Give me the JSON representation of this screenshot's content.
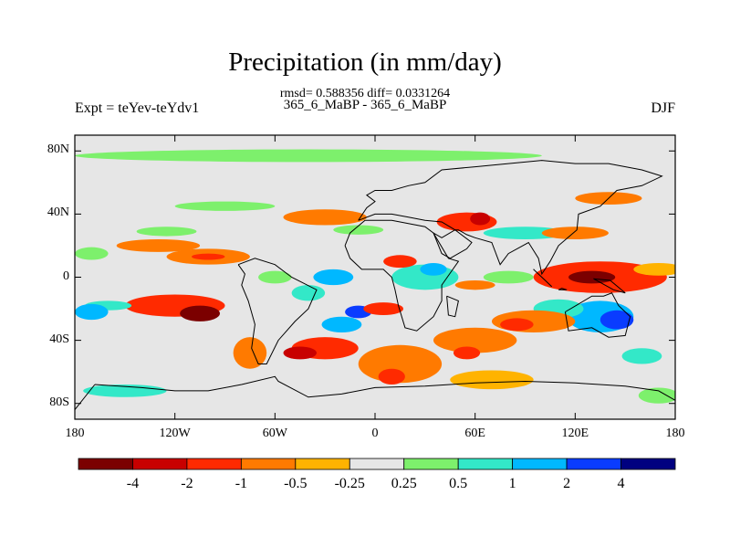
{
  "header": {
    "title": "Precipitation (in mm/day)",
    "stats": "rmsd= 0.588356 diff= 0.0331264",
    "runs": "365_6_MaBP - 365_6_MaBP",
    "left_string": "Expt = teYev-teYdv1",
    "right_string": "DJF"
  },
  "map": {
    "type": "contour-map",
    "lon_range": [
      -180,
      180
    ],
    "lat_range": [
      -90,
      90
    ],
    "y_ticks": [
      {
        "lat": 80,
        "label": "80N"
      },
      {
        "lat": 40,
        "label": "40N"
      },
      {
        "lat": 0,
        "label": "0"
      },
      {
        "lat": -40,
        "label": "40S"
      },
      {
        "lat": -80,
        "label": "80S"
      }
    ],
    "x_ticks": [
      {
        "lon": -180,
        "label": "180"
      },
      {
        "lon": -120,
        "label": "120W"
      },
      {
        "lon": -60,
        "label": "60W"
      },
      {
        "lon": 0,
        "label": "0"
      },
      {
        "lon": 60,
        "label": "60E"
      },
      {
        "lon": 120,
        "label": "120E"
      },
      {
        "lon": 180,
        "label": "180"
      }
    ],
    "background_color": "#e6e6e6",
    "blobs": [
      {
        "lon": -40,
        "lat": 77,
        "rx": 140,
        "ry": 4,
        "level": 6
      },
      {
        "lon": -120,
        "lat": -18,
        "rx": 30,
        "ry": 7,
        "level": 2
      },
      {
        "lon": -105,
        "lat": -23,
        "rx": 12,
        "ry": 5,
        "level": 0
      },
      {
        "lon": -75,
        "lat": -48,
        "rx": 10,
        "ry": 10,
        "level": 3
      },
      {
        "lon": -160,
        "lat": -18,
        "rx": 14,
        "ry": 3,
        "level": 7
      },
      {
        "lon": -170,
        "lat": -22,
        "rx": 10,
        "ry": 5,
        "level": 8
      },
      {
        "lon": -130,
        "lat": 20,
        "rx": 25,
        "ry": 4,
        "level": 3
      },
      {
        "lon": -125,
        "lat": 29,
        "rx": 18,
        "ry": 3,
        "level": 6
      },
      {
        "lon": -100,
        "lat": 13,
        "rx": 25,
        "ry": 5,
        "level": 3
      },
      {
        "lon": -100,
        "lat": 13,
        "rx": 10,
        "ry": 2,
        "level": 2
      },
      {
        "lon": -170,
        "lat": 15,
        "rx": 10,
        "ry": 4,
        "level": 6
      },
      {
        "lon": -30,
        "lat": 38,
        "rx": 25,
        "ry": 5,
        "level": 3
      },
      {
        "lon": -10,
        "lat": 30,
        "rx": 15,
        "ry": 3,
        "level": 6
      },
      {
        "lon": 55,
        "lat": 35,
        "rx": 18,
        "ry": 6,
        "level": 2
      },
      {
        "lon": 63,
        "lat": 37,
        "rx": 6,
        "ry": 4,
        "level": 1
      },
      {
        "lon": 90,
        "lat": 28,
        "rx": 25,
        "ry": 4,
        "level": 7
      },
      {
        "lon": 120,
        "lat": 28,
        "rx": 20,
        "ry": 4,
        "level": 3
      },
      {
        "lon": 135,
        "lat": 0,
        "rx": 40,
        "ry": 10,
        "level": 2
      },
      {
        "lon": 130,
        "lat": 0,
        "rx": 14,
        "ry": 4,
        "level": 0
      },
      {
        "lon": 170,
        "lat": 5,
        "rx": 15,
        "ry": 4,
        "level": 4
      },
      {
        "lon": 135,
        "lat": -25,
        "rx": 20,
        "ry": 10,
        "level": 8
      },
      {
        "lon": 145,
        "lat": -27,
        "rx": 10,
        "ry": 6,
        "level": 9
      },
      {
        "lon": 110,
        "lat": -20,
        "rx": 15,
        "ry": 6,
        "level": 7
      },
      {
        "lon": 160,
        "lat": -50,
        "rx": 12,
        "ry": 5,
        "level": 7
      },
      {
        "lon": 95,
        "lat": -28,
        "rx": 25,
        "ry": 7,
        "level": 3
      },
      {
        "lon": 85,
        "lat": -30,
        "rx": 10,
        "ry": 4,
        "level": 2
      },
      {
        "lon": 60,
        "lat": -40,
        "rx": 25,
        "ry": 8,
        "level": 3
      },
      {
        "lon": 55,
        "lat": -48,
        "rx": 8,
        "ry": 4,
        "level": 2
      },
      {
        "lon": 15,
        "lat": -55,
        "rx": 25,
        "ry": 12,
        "level": 3
      },
      {
        "lon": 10,
        "lat": -63,
        "rx": 8,
        "ry": 5,
        "level": 2
      },
      {
        "lon": 70,
        "lat": -65,
        "rx": 25,
        "ry": 6,
        "level": 4
      },
      {
        "lon": -30,
        "lat": -45,
        "rx": 20,
        "ry": 7,
        "level": 2
      },
      {
        "lon": -45,
        "lat": -48,
        "rx": 10,
        "ry": 4,
        "level": 1
      },
      {
        "lon": -20,
        "lat": -30,
        "rx": 12,
        "ry": 5,
        "level": 8
      },
      {
        "lon": -10,
        "lat": -22,
        "rx": 8,
        "ry": 4,
        "level": 9
      },
      {
        "lon": 5,
        "lat": -20,
        "rx": 12,
        "ry": 4,
        "level": 2
      },
      {
        "lon": 30,
        "lat": 0,
        "rx": 20,
        "ry": 8,
        "level": 7
      },
      {
        "lon": 35,
        "lat": 5,
        "rx": 8,
        "ry": 4,
        "level": 8
      },
      {
        "lon": 15,
        "lat": 10,
        "rx": 10,
        "ry": 4,
        "level": 2
      },
      {
        "lon": -25,
        "lat": 0,
        "rx": 12,
        "ry": 5,
        "level": 8
      },
      {
        "lon": -40,
        "lat": -10,
        "rx": 10,
        "ry": 5,
        "level": 7
      },
      {
        "lon": -60,
        "lat": 0,
        "rx": 10,
        "ry": 4,
        "level": 6
      },
      {
        "lon": 80,
        "lat": 0,
        "rx": 15,
        "ry": 4,
        "level": 6
      },
      {
        "lon": 60,
        "lat": -5,
        "rx": 12,
        "ry": 3,
        "level": 3
      },
      {
        "lon": -150,
        "lat": -72,
        "rx": 25,
        "ry": 4,
        "level": 7
      },
      {
        "lon": 170,
        "lat": -75,
        "rx": 12,
        "ry": 5,
        "level": 6
      },
      {
        "lon": -90,
        "lat": 45,
        "rx": 30,
        "ry": 3,
        "level": 6
      },
      {
        "lon": 140,
        "lat": 50,
        "rx": 20,
        "ry": 4,
        "level": 3
      }
    ],
    "coastlines": [
      [
        [
          -168,
          -68
        ],
        [
          -140,
          -70
        ],
        [
          -120,
          -72
        ],
        [
          -100,
          -72
        ],
        [
          -80,
          -68
        ],
        [
          -60,
          -63
        ],
        [
          -58,
          -66
        ],
        [
          -40,
          -76
        ],
        [
          -20,
          -74
        ],
        [
          0,
          -70
        ],
        [
          30,
          -69
        ],
        [
          60,
          -67
        ],
        [
          90,
          -66
        ],
        [
          120,
          -67
        ],
        [
          150,
          -69
        ],
        [
          170,
          -72
        ],
        [
          180,
          -78
        ],
        [
          180,
          -90
        ],
        [
          -180,
          -90
        ],
        [
          -180,
          -84
        ],
        [
          -168,
          -68
        ]
      ],
      [
        [
          -82,
          8
        ],
        [
          -78,
          2
        ],
        [
          -80,
          -5
        ],
        [
          -76,
          -15
        ],
        [
          -72,
          -30
        ],
        [
          -74,
          -45
        ],
        [
          -70,
          -55
        ],
        [
          -65,
          -55
        ],
        [
          -58,
          -40
        ],
        [
          -48,
          -28
        ],
        [
          -40,
          -20
        ],
        [
          -35,
          -8
        ],
        [
          -50,
          0
        ],
        [
          -60,
          8
        ],
        [
          -72,
          12
        ],
        [
          -82,
          8
        ]
      ],
      [
        [
          -18,
          20
        ],
        [
          -15,
          12
        ],
        [
          -8,
          5
        ],
        [
          5,
          5
        ],
        [
          10,
          0
        ],
        [
          12,
          -8
        ],
        [
          14,
          -18
        ],
        [
          18,
          -32
        ],
        [
          25,
          -34
        ],
        [
          35,
          -25
        ],
        [
          40,
          -15
        ],
        [
          40,
          -5
        ],
        [
          50,
          10
        ],
        [
          44,
          12
        ],
        [
          35,
          28
        ],
        [
          30,
          32
        ],
        [
          10,
          36
        ],
        [
          -6,
          36
        ],
        [
          -15,
          28
        ],
        [
          -18,
          20
        ]
      ],
      [
        [
          -10,
          36
        ],
        [
          -5,
          44
        ],
        [
          0,
          48
        ],
        [
          -5,
          52
        ],
        [
          0,
          55
        ],
        [
          10,
          55
        ],
        [
          20,
          58
        ],
        [
          30,
          60
        ],
        [
          40,
          68
        ],
        [
          60,
          70
        ],
        [
          80,
          72
        ],
        [
          100,
          74
        ],
        [
          120,
          72
        ],
        [
          140,
          72
        ],
        [
          160,
          68
        ],
        [
          172,
          64
        ],
        [
          160,
          58
        ],
        [
          145,
          55
        ],
        [
          135,
          45
        ],
        [
          122,
          40
        ],
        [
          121,
          30
        ],
        [
          110,
          20
        ],
        [
          105,
          10
        ],
        [
          100,
          2
        ],
        [
          98,
          12
        ],
        [
          92,
          22
        ],
        [
          80,
          15
        ],
        [
          75,
          8
        ],
        [
          70,
          22
        ],
        [
          60,
          25
        ],
        [
          55,
          27
        ],
        [
          50,
          30
        ],
        [
          48,
          30
        ],
        [
          40,
          35
        ],
        [
          30,
          36
        ],
        [
          20,
          38
        ],
        [
          10,
          40
        ],
        [
          0,
          40
        ],
        [
          -10,
          36
        ]
      ],
      [
        [
          45,
          12
        ],
        [
          55,
          18
        ],
        [
          58,
          22
        ],
        [
          48,
          30
        ],
        [
          40,
          25
        ],
        [
          35,
          28
        ],
        [
          40,
          15
        ],
        [
          45,
          12
        ]
      ],
      [
        [
          114,
          -22
        ],
        [
          122,
          -17
        ],
        [
          130,
          -12
        ],
        [
          137,
          -12
        ],
        [
          142,
          -10
        ],
        [
          146,
          -18
        ],
        [
          153,
          -25
        ],
        [
          150,
          -37
        ],
        [
          140,
          -38
        ],
        [
          130,
          -32
        ],
        [
          116,
          -34
        ],
        [
          114,
          -22
        ]
      ],
      [
        [
          43,
          -12
        ],
        [
          50,
          -15
        ],
        [
          48,
          -25
        ],
        [
          44,
          -24
        ],
        [
          43,
          -12
        ]
      ],
      [
        [
          95,
          5
        ],
        [
          105,
          -5
        ],
        [
          106,
          -6
        ],
        [
          98,
          2
        ],
        [
          95,
          5
        ]
      ],
      [
        [
          110,
          -8
        ],
        [
          115,
          -8
        ],
        [
          112,
          -7
        ],
        [
          110,
          -8
        ]
      ],
      [
        [
          131,
          -1
        ],
        [
          141,
          -2
        ],
        [
          150,
          -10
        ],
        [
          143,
          -8
        ],
        [
          131,
          -1
        ]
      ]
    ]
  },
  "colorbar": {
    "colors": [
      "#7b0000",
      "#c80000",
      "#ff2a00",
      "#ff7a00",
      "#ffb300",
      "#e6e6e6",
      "#7df06c",
      "#33e8c8",
      "#00b8ff",
      "#0a3cff",
      "#000080"
    ],
    "labels": [
      "-4",
      "-2",
      "-1",
      "-0.5",
      "-0.25",
      "0.25",
      "0.5",
      "1",
      "2",
      "4"
    ]
  }
}
